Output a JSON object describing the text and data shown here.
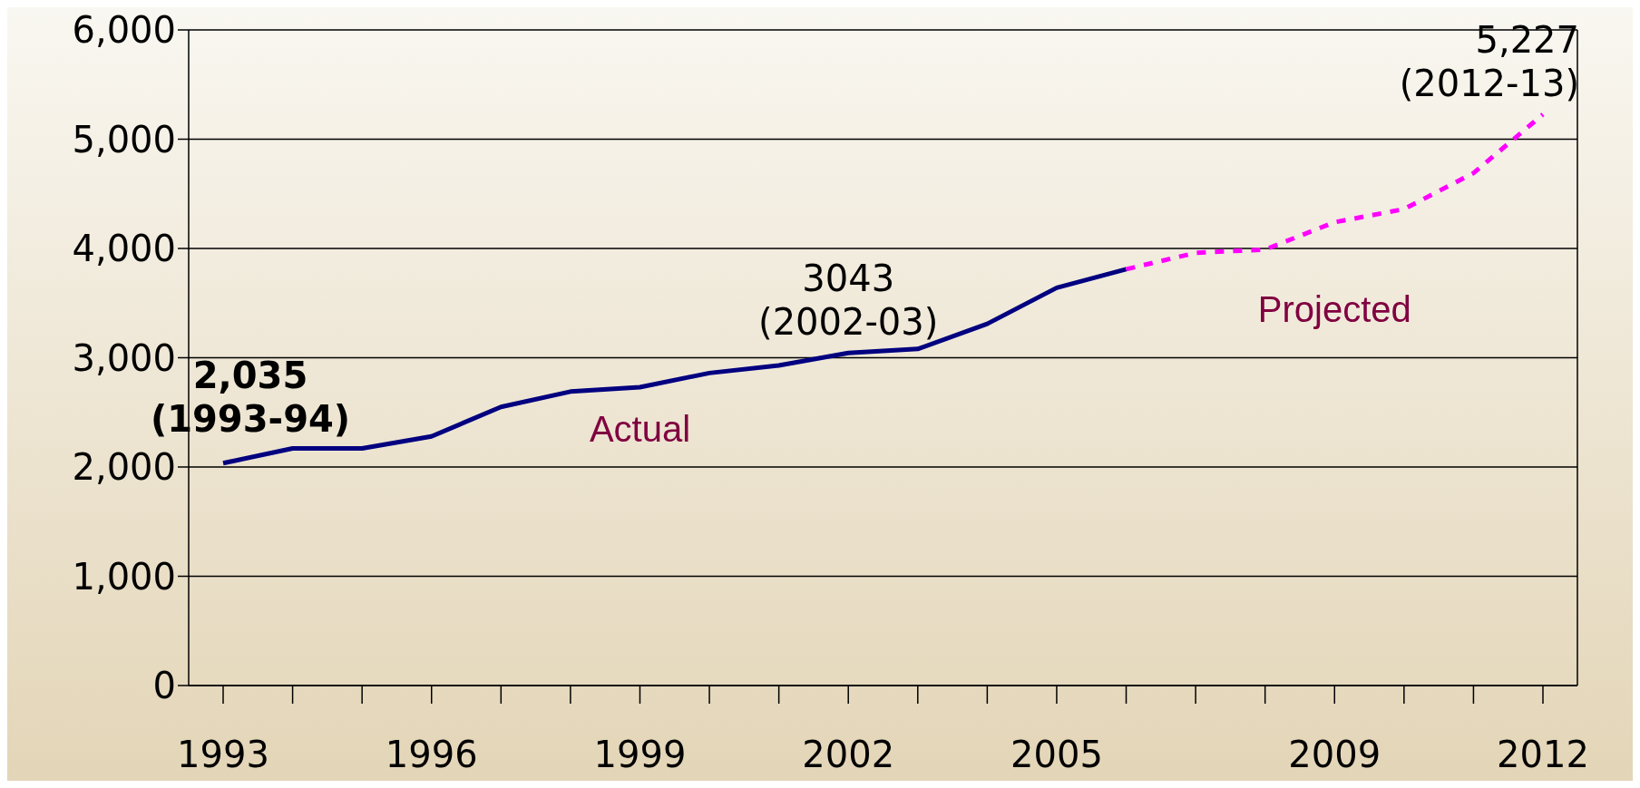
{
  "chart_data": {
    "type": "line",
    "categories": [
      "1993",
      null,
      null,
      "1996",
      null,
      null,
      "1999",
      null,
      null,
      "2002",
      null,
      null,
      "2005",
      null,
      null,
      null,
      "2009",
      null,
      null,
      "2012"
    ],
    "series": [
      {
        "name": "Actual",
        "color": "#000080",
        "line_style": "solid",
        "values": [
          2035,
          2170,
          2170,
          2280,
          2550,
          2690,
          2730,
          2860,
          2930,
          3043,
          3080,
          3310,
          3640,
          3810,
          null,
          null,
          null,
          null,
          null,
          null
        ]
      },
      {
        "name": "Projected",
        "color": "#ff00ff",
        "line_style": "dotted",
        "values": [
          null,
          null,
          null,
          null,
          null,
          null,
          null,
          null,
          null,
          null,
          null,
          null,
          null,
          3810,
          3960,
          3990,
          4240,
          4360,
          4690,
          5227
        ]
      }
    ],
    "ylim": [
      0,
      6000
    ],
    "yticks": [
      {
        "value": 0,
        "label": "0"
      },
      {
        "value": 1000,
        "label": "1,000"
      },
      {
        "value": 2000,
        "label": "2,000"
      },
      {
        "value": 3000,
        "label": "3,000"
      },
      {
        "value": 4000,
        "label": "4,000"
      },
      {
        "value": 5000,
        "label": "5,000"
      },
      {
        "value": 6000,
        "label": "6,000"
      }
    ],
    "grid": "y",
    "legend": false,
    "marker": "none",
    "annotations": [
      {
        "text": "2,035\n(1993-94)",
        "x": "1993",
        "y": 2035
      },
      {
        "text": "3043\n(2002-03)",
        "x": "2002",
        "y": 3043
      },
      {
        "text": "5,227\n(2012-13)",
        "x": "2012",
        "y": 5227
      }
    ]
  }
}
